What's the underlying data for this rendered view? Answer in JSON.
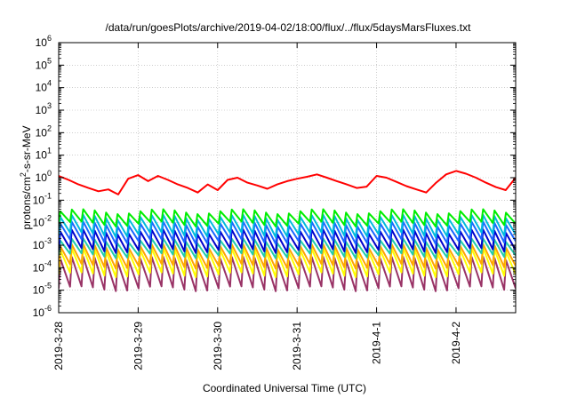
{
  "chart_data": {
    "type": "line",
    "title": "/data/run/goesPlots/archive/2019-04-02/18:00/flux/../flux/5daysMarsFluxes.txt",
    "xlabel": "Coordinated Universal Time (UTC)",
    "ylabel": {
      "pre": "protons/cm",
      "sup": "2",
      "post": "-s-sr-MeV"
    },
    "y_scale": "log",
    "ylim": [
      1e-06,
      1000000.0
    ],
    "y_ticks": [
      {
        "value": 1000000.0,
        "base": "10",
        "exp": "6"
      },
      {
        "value": 100000.0,
        "base": "10",
        "exp": "5"
      },
      {
        "value": 10000.0,
        "base": "10",
        "exp": "4"
      },
      {
        "value": 1000.0,
        "base": "10",
        "exp": "3"
      },
      {
        "value": 100.0,
        "base": "10",
        "exp": "2"
      },
      {
        "value": 10.0,
        "base": "10",
        "exp": "1"
      },
      {
        "value": 1.0,
        "base": "10",
        "exp": "0"
      },
      {
        "value": 0.1,
        "base": "10",
        "exp": "-1"
      },
      {
        "value": 0.01,
        "base": "10",
        "exp": "-2"
      },
      {
        "value": 0.001,
        "base": "10",
        "exp": "-3"
      },
      {
        "value": 0.0001,
        "base": "10",
        "exp": "-4"
      },
      {
        "value": 1e-05,
        "base": "10",
        "exp": "-5"
      },
      {
        "value": 1e-06,
        "base": "10",
        "exp": "-6"
      }
    ],
    "x_range": [
      "2019-03-28T00:00",
      "2019-04-02T18:00"
    ],
    "x_ticks": [
      "2019-3-28",
      "2019-3-29",
      "2019-3-30",
      "2019-3-31",
      "2019-4-1",
      "2019-4-2"
    ],
    "grid": true,
    "series": [
      {
        "color": "#ff0000",
        "x": [
          "2019-03-28T00:00",
          "2019-03-28T03:00",
          "2019-03-28T06:00",
          "2019-03-28T09:00",
          "2019-03-28T12:00",
          "2019-03-28T15:00",
          "2019-03-28T18:00",
          "2019-03-28T21:00",
          "2019-03-29T00:00",
          "2019-03-29T03:00",
          "2019-03-29T06:00",
          "2019-03-29T09:00",
          "2019-03-29T12:00",
          "2019-03-29T15:00",
          "2019-03-29T18:00",
          "2019-03-29T21:00",
          "2019-03-30T00:00",
          "2019-03-30T03:00",
          "2019-03-30T06:00",
          "2019-03-30T09:00",
          "2019-03-30T12:00",
          "2019-03-30T15:00",
          "2019-03-30T18:00",
          "2019-03-30T21:00",
          "2019-03-31T00:00",
          "2019-03-31T03:00",
          "2019-03-31T06:00",
          "2019-03-31T09:00",
          "2019-03-31T12:00",
          "2019-03-31T15:00",
          "2019-03-31T18:00",
          "2019-03-31T21:00",
          "2019-04-01T00:00",
          "2019-04-01T03:00",
          "2019-04-01T06:00",
          "2019-04-01T09:00",
          "2019-04-01T12:00",
          "2019-04-01T15:00",
          "2019-04-01T18:00",
          "2019-04-01T21:00",
          "2019-04-02T00:00",
          "2019-04-02T03:00",
          "2019-04-02T06:00",
          "2019-04-02T09:00",
          "2019-04-02T12:00",
          "2019-04-02T15:00",
          "2019-04-02T18:00"
        ],
        "values": [
          1.2,
          0.8,
          0.5,
          0.35,
          0.25,
          0.3,
          0.18,
          0.9,
          1.3,
          0.7,
          1.2,
          0.8,
          0.5,
          0.35,
          0.22,
          0.5,
          0.28,
          0.8,
          1.0,
          0.6,
          0.45,
          0.32,
          0.5,
          0.7,
          0.9,
          1.1,
          1.4,
          1.0,
          0.7,
          0.5,
          0.35,
          0.4,
          1.2,
          1.0,
          0.65,
          0.42,
          0.3,
          0.22,
          0.6,
          1.4,
          2.0,
          1.5,
          1.0,
          0.6,
          0.38,
          0.28,
          1.0
        ]
      },
      {
        "color": "#00ee00",
        "pattern": "sawtooth",
        "x_start": "2019-03-28T00:00",
        "x_end": "2019-04-02T18:00",
        "cycles": 40,
        "peak": 0.032,
        "trough": 0.009
      },
      {
        "color": "#00bbdd",
        "pattern": "sawtooth",
        "x_start": "2019-03-28T00:00",
        "x_end": "2019-04-02T18:00",
        "cycles": 40,
        "peak": 0.018,
        "trough": 0.003
      },
      {
        "color": "#1a66ff",
        "pattern": "sawtooth",
        "x_start": "2019-03-28T00:00",
        "x_end": "2019-04-02T18:00",
        "cycles": 40,
        "peak": 0.009,
        "trough": 0.0015
      },
      {
        "color": "#0000cc",
        "pattern": "sawtooth",
        "x_start": "2019-03-28T00:00",
        "x_end": "2019-04-02T18:00",
        "cycles": 40,
        "peak": 0.004,
        "trough": 0.0006
      },
      {
        "color": "#22ccaa",
        "pattern": "sawtooth",
        "x_start": "2019-03-28T00:00",
        "x_end": "2019-04-02T18:00",
        "cycles": 40,
        "peak": 0.0016,
        "trough": 0.00035
      },
      {
        "color": "#ffa500",
        "pattern": "sawtooth",
        "x_start": "2019-03-28T00:00",
        "x_end": "2019-04-02T18:00",
        "cycles": 40,
        "peak": 0.0009,
        "trough": 0.00012
      },
      {
        "color": "#ffff00",
        "pattern": "sawtooth",
        "x_start": "2019-03-28T00:00",
        "x_end": "2019-04-02T18:00",
        "cycles": 40,
        "peak": 0.0006,
        "trough": 5e-05
      },
      {
        "color": "#993366",
        "pattern": "sawtooth",
        "x_start": "2019-03-28T00:00",
        "x_end": "2019-04-02T18:00",
        "cycles": 40,
        "peak": 0.00025,
        "trough": 1.2e-05
      }
    ]
  }
}
